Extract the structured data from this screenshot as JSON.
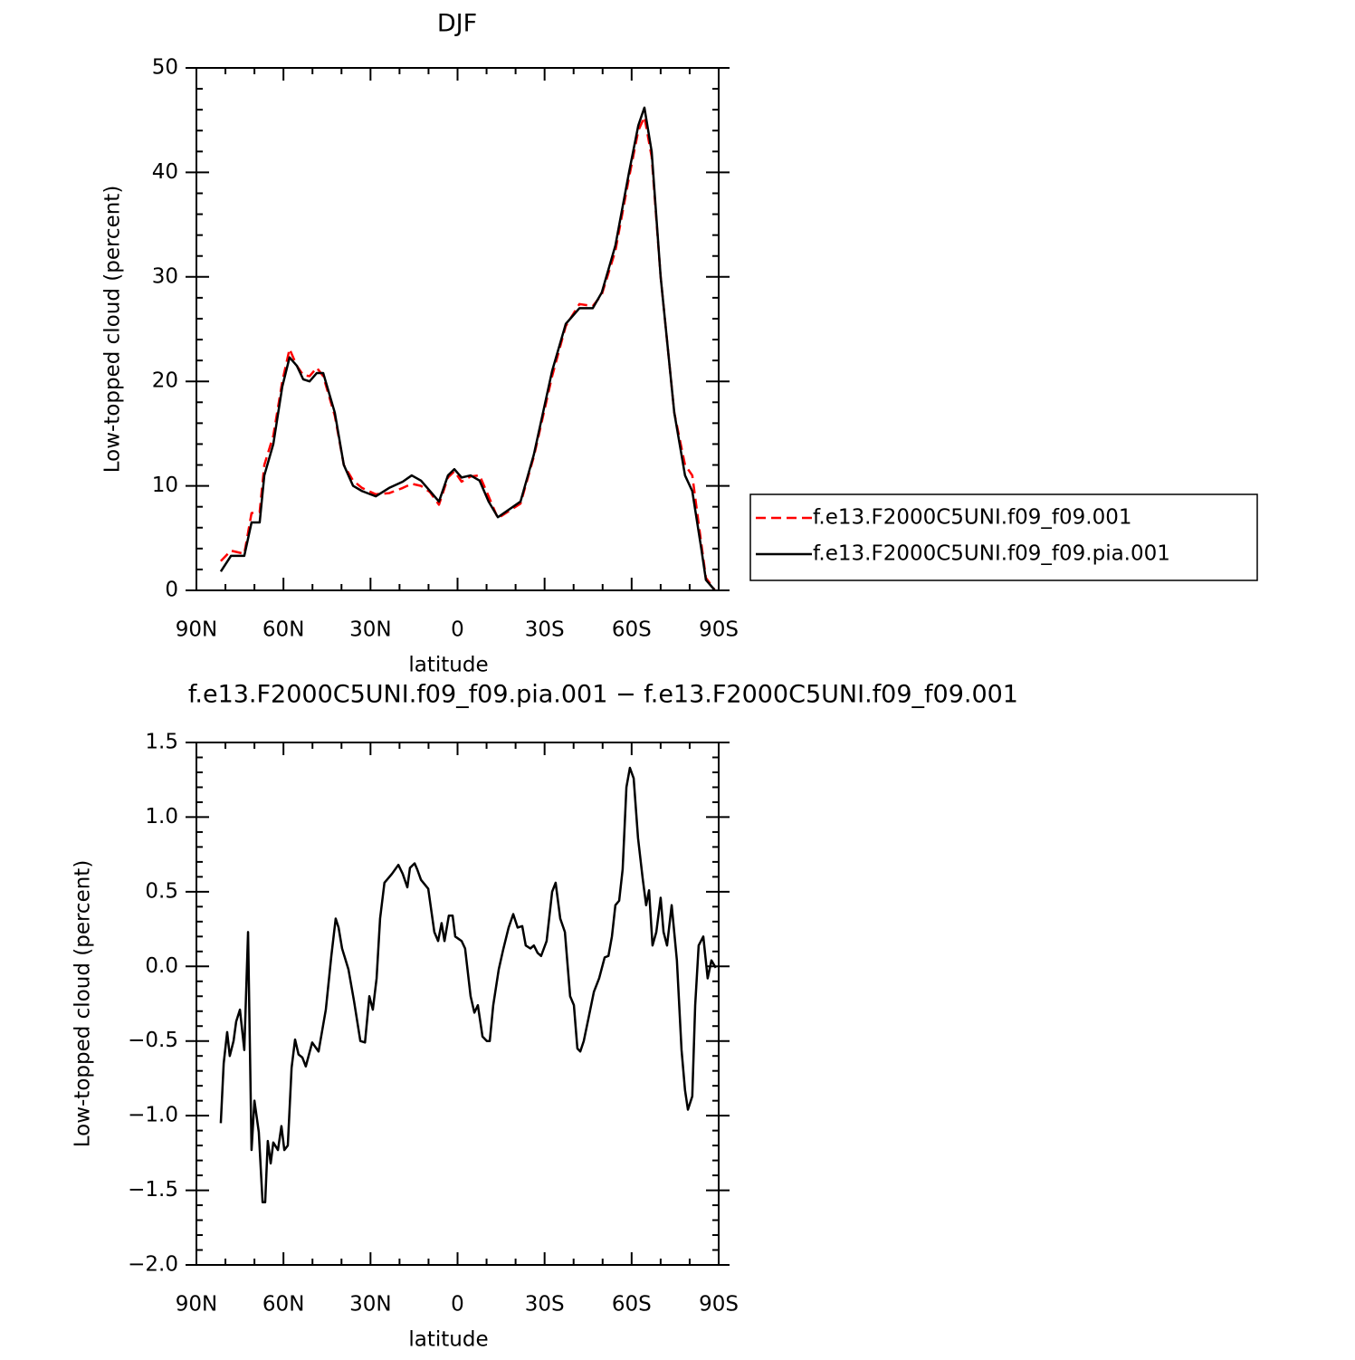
{
  "chart_data": [
    {
      "type": "line",
      "title": "DJF",
      "xlabel": "latitude",
      "ylabel": "Low-topped cloud (percent)",
      "xlim": [
        90,
        -90
      ],
      "ylim": [
        0,
        50
      ],
      "xticks": [
        {
          "value": 90,
          "label": "90N"
        },
        {
          "value": 60,
          "label": "60N"
        },
        {
          "value": 30,
          "label": "30N"
        },
        0,
        {
          "value": -30,
          "label": "30S"
        },
        {
          "value": -60,
          "label": "60S"
        },
        {
          "value": -90,
          "label": "90S"
        }
      ],
      "yticks": [
        0,
        10,
        20,
        30,
        40,
        50
      ],
      "legend": "right",
      "x": [
        81.6,
        78.1,
        73.5,
        71,
        68.2,
        66.6,
        63.5,
        60.4,
        57.9,
        55.4,
        53.2,
        51,
        48.5,
        46.3,
        42.3,
        39.2,
        36,
        32.9,
        28.2,
        23.6,
        18.9,
        15.8,
        12.6,
        9.5,
        6.4,
        3.3,
        1.1,
        -1.4,
        -4.5,
        -7.6,
        -10.7,
        -13.9,
        -21.7,
        -26.3,
        -32.6,
        -37.3,
        -42,
        -46.6,
        -49.7,
        -54.4,
        -59.1,
        -62.3,
        -64.4,
        -66.9,
        -70,
        -74.7,
        -78.4,
        -80.9,
        -84,
        -85.6,
        -88.7
      ],
      "series": [
        {
          "name": "f.e13.F2000C5UNI.f09_f09.001",
          "color": "#ff0000",
          "dash": true,
          "values": [
            2.8,
            3.8,
            3.5,
            7.4,
            7.5,
            12,
            14.8,
            20,
            23.1,
            21.5,
            20.6,
            20.5,
            21.3,
            20.5,
            16.7,
            12,
            10.5,
            9.8,
            9.2,
            9.3,
            9.8,
            10.2,
            10.0,
            9.4,
            8.2,
            10.8,
            11.4,
            10.4,
            10.9,
            11,
            9,
            6.9,
            8.3,
            12.8,
            20.5,
            25.3,
            27.4,
            27.2,
            28.3,
            32.5,
            39.5,
            44,
            45.3,
            41.5,
            30,
            17,
            12,
            11,
            4.5,
            1.2,
            0
          ]
        },
        {
          "name": "f.e13.F2000C5UNI.f09_f09.pia.001",
          "color": "#000000",
          "dash": false,
          "values": [
            1.8,
            3.3,
            3.3,
            6.5,
            6.5,
            11,
            14,
            19.5,
            22.3,
            21.5,
            20.2,
            20,
            20.8,
            20.8,
            17,
            12,
            10,
            9.5,
            9,
            9.8,
            10.4,
            11,
            10.5,
            9.5,
            8.5,
            11,
            11.6,
            10.8,
            11,
            10.5,
            8.5,
            7,
            8.5,
            13,
            21,
            25.5,
            27,
            27,
            28.5,
            33,
            40,
            44.5,
            46.2,
            42,
            30,
            17,
            11,
            9.5,
            4,
            1,
            0
          ]
        }
      ]
    },
    {
      "type": "line",
      "title": "f.e13.F2000C5UNI.f09_f09.pia.001 − f.e13.F2000C5UNI.f09_f09.001",
      "xlabel": "latitude",
      "ylabel": "Low-topped cloud (percent)",
      "xlim": [
        90,
        -90
      ],
      "ylim": [
        -2.0,
        1.5
      ],
      "xticks": [
        {
          "value": 90,
          "label": "90N"
        },
        {
          "value": 60,
          "label": "60N"
        },
        {
          "value": 30,
          "label": "30N"
        },
        0,
        {
          "value": -30,
          "label": "30S"
        },
        {
          "value": -60,
          "label": "60S"
        },
        {
          "value": -90,
          "label": "90S"
        }
      ],
      "yticks": [
        {
          "value": -2,
          "label": "−2.0"
        },
        {
          "value": -1.5,
          "label": "−1.5"
        },
        {
          "value": -1,
          "label": "−1.0"
        },
        {
          "value": -0.5,
          "label": "−0.5"
        },
        {
          "value": 0,
          "label": "0.0"
        },
        0.5,
        {
          "value": 1,
          "label": "1.0"
        },
        1.5
      ],
      "x": [
        81.6,
        80.6,
        79.4,
        78.5,
        77.2,
        76.3,
        75,
        73.5,
        72.2,
        71,
        70,
        68.5,
        67.2,
        66.3,
        65.4,
        64.4,
        63.5,
        61.9,
        60.7,
        59.7,
        58.5,
        57.2,
        56,
        54.8,
        53.5,
        52.3,
        50.1,
        47.9,
        45.4,
        43.5,
        42,
        41,
        39.8,
        37.6,
        35.7,
        33.5,
        31.9,
        30.4,
        29.2,
        27.9,
        26.7,
        25.2,
        22.6,
        20.4,
        18.9,
        17.3,
        16.4,
        14.8,
        13.9,
        12.6,
        10.1,
        8,
        6.7,
        5.5,
        4.5,
        3,
        1.7,
        0.8,
        -1.4,
        -2.6,
        -4.5,
        -5.8,
        -7,
        -8.6,
        -10.1,
        -11.1,
        -12.3,
        -14.2,
        -15.7,
        -17.6,
        -19.2,
        -20.7,
        -22.3,
        -23.5,
        -25.1,
        -26.3,
        -27.6,
        -28.8,
        -30.7,
        -32.6,
        -33.8,
        -35.4,
        -37,
        -38.8,
        -40.1,
        -41.3,
        -42.3,
        -43.5,
        -45.1,
        -47,
        -48.8,
        -50.7,
        -52,
        -53.2,
        -54.4,
        -55.7,
        -56.9,
        -58.2,
        -59.4,
        -60.7,
        -62.2,
        -63.8,
        -65,
        -66,
        -67.2,
        -68.5,
        -70,
        -71,
        -72.2,
        -73.8,
        -75.6,
        -77.2,
        -78.4,
        -79.4,
        -80.9,
        -81.9,
        -83.1,
        -84.7,
        -86.2,
        -87.5,
        -89
      ],
      "series": [
        {
          "color": "#000000",
          "dash": false,
          "values": [
            -1.05,
            -0.65,
            -0.44,
            -0.6,
            -0.5,
            -0.37,
            -0.29,
            -0.56,
            0.23,
            -1.23,
            -0.9,
            -1.11,
            -1.58,
            -1.58,
            -1.17,
            -1.32,
            -1.18,
            -1.23,
            -1.07,
            -1.23,
            -1.2,
            -0.68,
            -0.49,
            -0.59,
            -0.61,
            -0.67,
            -0.51,
            -0.57,
            -0.29,
            0.07,
            0.32,
            0.26,
            0.12,
            -0.02,
            -0.23,
            -0.5,
            -0.51,
            -0.2,
            -0.29,
            -0.08,
            0.32,
            0.56,
            0.62,
            0.68,
            0.62,
            0.53,
            0.66,
            0.69,
            0.65,
            0.58,
            0.52,
            0.23,
            0.17,
            0.29,
            0.17,
            0.34,
            0.34,
            0.2,
            0.17,
            0.12,
            -0.2,
            -0.31,
            -0.26,
            -0.47,
            -0.5,
            -0.5,
            -0.26,
            -0.02,
            0.11,
            0.26,
            0.35,
            0.26,
            0.27,
            0.14,
            0.12,
            0.14,
            0.09,
            0.07,
            0.17,
            0.5,
            0.56,
            0.32,
            0.23,
            -0.2,
            -0.26,
            -0.55,
            -0.57,
            -0.5,
            -0.35,
            -0.17,
            -0.08,
            0.06,
            0.07,
            0.2,
            0.41,
            0.44,
            0.65,
            1.2,
            1.33,
            1.26,
            0.86,
            0.59,
            0.41,
            0.51,
            0.14,
            0.23,
            0.46,
            0.23,
            0.14,
            0.41,
            0.04,
            -0.56,
            -0.83,
            -0.96,
            -0.87,
            -0.26,
            0.14,
            0.2,
            -0.08,
            0.04,
            -0.01
          ]
        }
      ]
    }
  ]
}
